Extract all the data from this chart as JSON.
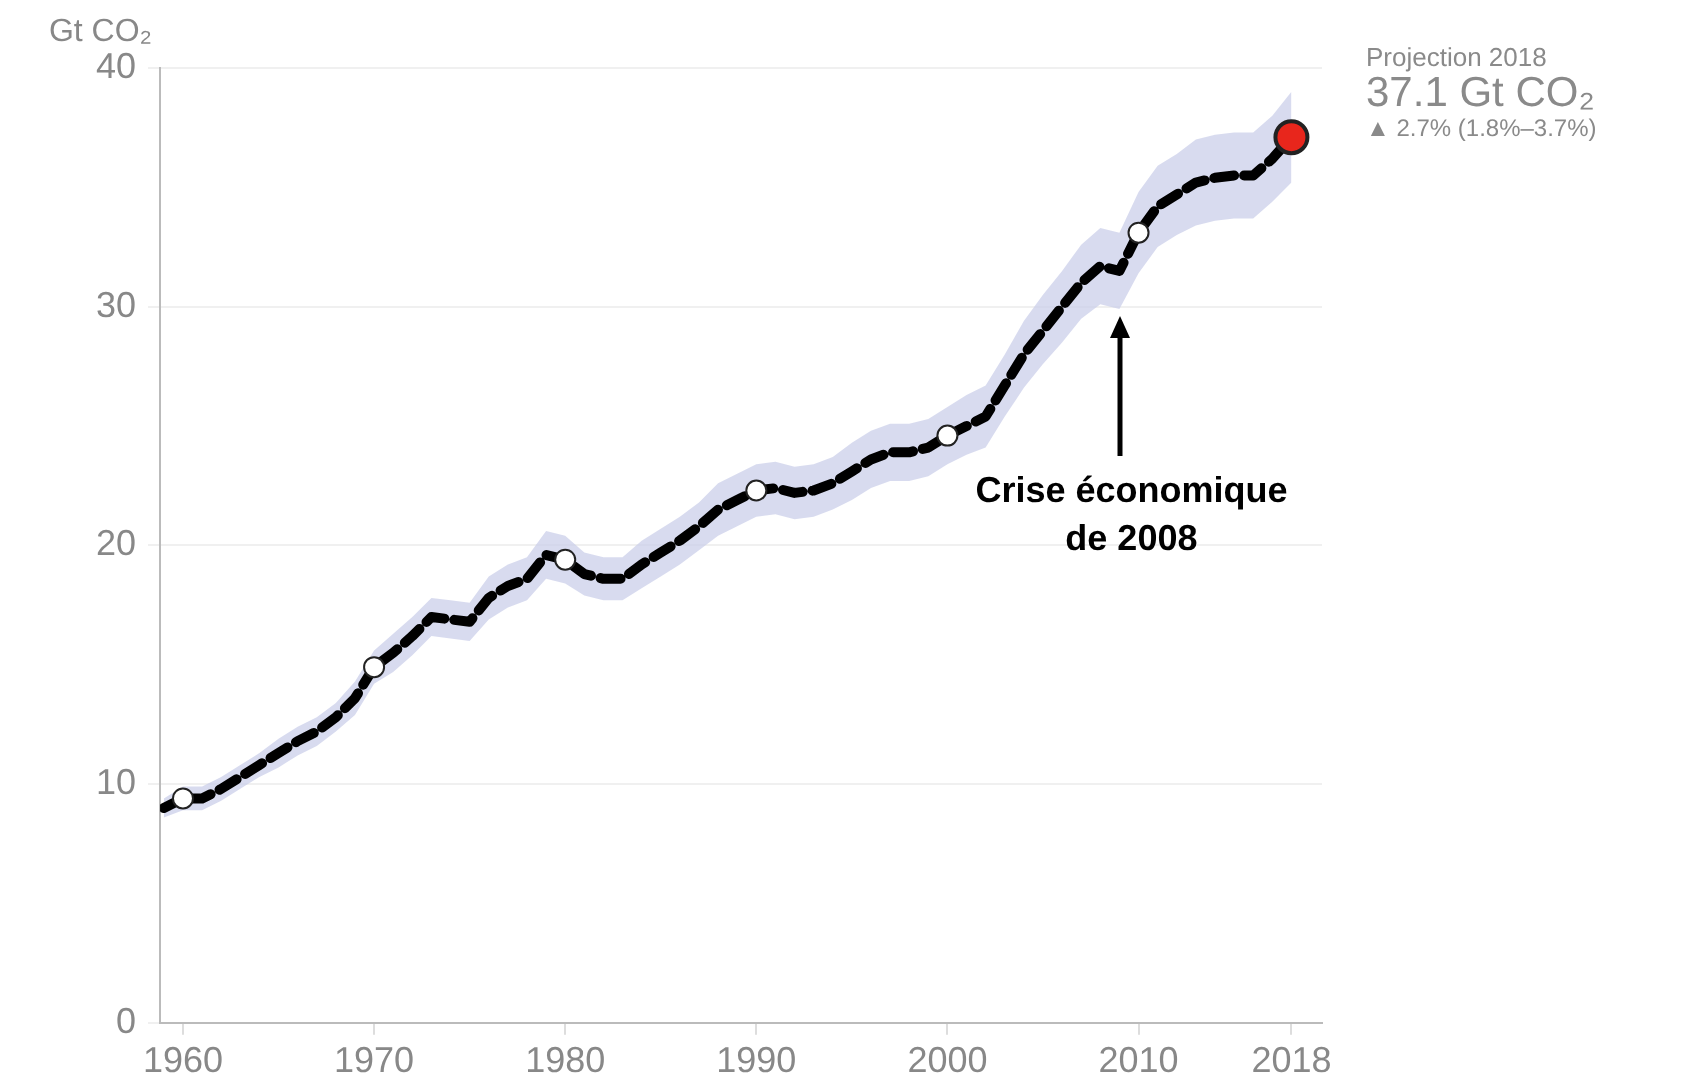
{
  "chart_data": {
    "type": "line",
    "ylabel": "Gt CO₂",
    "xlim": [
      1958.8,
      2019.6
    ],
    "ylim": [
      0,
      40
    ],
    "xticks": [
      1960,
      1970,
      1980,
      1990,
      2000,
      2010,
      2018
    ],
    "yticks": [
      0,
      10,
      20,
      30,
      40
    ],
    "grid": "y",
    "legend": false,
    "line_style": "dashed",
    "series": [
      {
        "type": "line",
        "color": "#000000",
        "marker": "none",
        "x": [
          1959,
          1960,
          1961,
          1962,
          1963,
          1964,
          1965,
          1966,
          1967,
          1968,
          1969,
          1970,
          1971,
          1972,
          1973,
          1974,
          1975,
          1976,
          1977,
          1978,
          1979,
          1980,
          1981,
          1982,
          1983,
          1984,
          1985,
          1986,
          1987,
          1988,
          1989,
          1990,
          1991,
          1992,
          1993,
          1994,
          1995,
          1996,
          1997,
          1998,
          1999,
          2000,
          2001,
          2002,
          2003,
          2004,
          2005,
          2006,
          2007,
          2008,
          2009,
          2010,
          2011,
          2012,
          2013,
          2014,
          2015,
          2016,
          2017,
          2018
        ],
        "values": [
          9.0,
          9.4,
          9.4,
          9.8,
          10.3,
          10.8,
          11.3,
          11.8,
          12.2,
          12.8,
          13.6,
          14.9,
          15.5,
          16.2,
          17.0,
          16.9,
          16.8,
          17.8,
          18.3,
          18.6,
          19.6,
          19.4,
          18.8,
          18.6,
          18.6,
          19.2,
          19.7,
          20.2,
          20.8,
          21.5,
          21.9,
          22.3,
          22.4,
          22.2,
          22.3,
          22.6,
          23.1,
          23.6,
          23.9,
          23.9,
          24.1,
          24.6,
          25.0,
          25.4,
          26.7,
          28.0,
          29.0,
          30.0,
          31.0,
          31.7,
          31.5,
          33.1,
          34.2,
          34.7,
          35.2,
          35.4,
          35.5,
          35.5,
          36.2,
          37.1
        ],
        "lower": [
          8.6,
          8.9,
          8.9,
          9.3,
          9.8,
          10.3,
          10.7,
          11.2,
          11.6,
          12.2,
          12.9,
          14.2,
          14.7,
          15.4,
          16.2,
          16.1,
          16.0,
          16.9,
          17.4,
          17.7,
          18.6,
          18.4,
          17.9,
          17.7,
          17.7,
          18.2,
          18.7,
          19.2,
          19.8,
          20.4,
          20.8,
          21.2,
          21.3,
          21.1,
          21.2,
          21.5,
          21.9,
          22.4,
          22.7,
          22.7,
          22.9,
          23.4,
          23.8,
          24.1,
          25.4,
          26.6,
          27.6,
          28.5,
          29.5,
          30.1,
          29.9,
          31.4,
          32.5,
          33.0,
          33.4,
          33.6,
          33.7,
          33.7,
          34.4,
          35.2
        ],
        "upper": [
          9.4,
          9.9,
          9.9,
          10.3,
          10.8,
          11.3,
          11.9,
          12.4,
          12.8,
          13.4,
          14.3,
          15.6,
          16.3,
          17.0,
          17.8,
          17.7,
          17.6,
          18.7,
          19.2,
          19.5,
          20.6,
          20.4,
          19.7,
          19.5,
          19.5,
          20.2,
          20.7,
          21.2,
          21.8,
          22.6,
          23.0,
          23.4,
          23.5,
          23.3,
          23.4,
          23.7,
          24.3,
          24.8,
          25.1,
          25.1,
          25.3,
          25.8,
          26.3,
          26.7,
          28.0,
          29.4,
          30.5,
          31.5,
          32.6,
          33.3,
          33.1,
          34.8,
          35.9,
          36.4,
          37.0,
          37.2,
          37.3,
          37.3,
          38.0,
          39.0
        ]
      },
      {
        "type": "scatter",
        "color": "#ffffff",
        "marker": "circle",
        "x": [
          1960,
          1970,
          1980,
          1990,
          2000,
          2010
        ],
        "values": [
          9.4,
          14.9,
          19.4,
          22.3,
          24.6,
          33.1
        ]
      },
      {
        "type": "scatter",
        "color": "#e8261c",
        "marker": "circle",
        "x": [
          2018
        ],
        "values": [
          37.1
        ]
      }
    ],
    "annotations": [
      {
        "text": "Crise économique de 2008",
        "x": 2009,
        "y": 29.6
      },
      "Projection 2018",
      "37.1 Gt CO₂",
      "▲ 2.7% (1.8%–3.7%)"
    ]
  }
}
